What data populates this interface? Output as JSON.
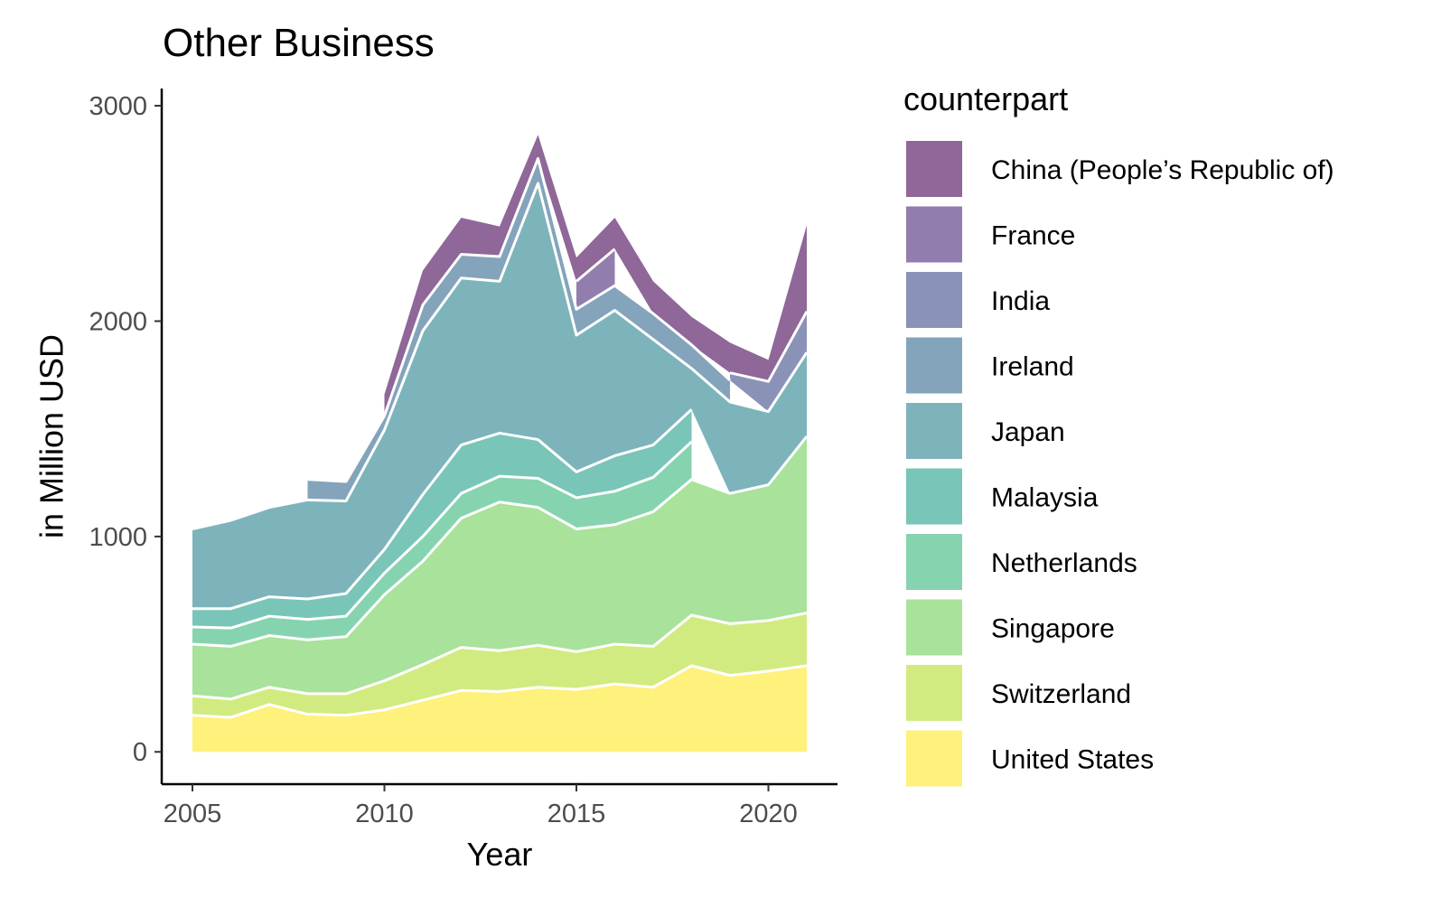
{
  "chart_data": {
    "type": "area",
    "stacked": true,
    "title": "Other Business",
    "xlabel": "Year",
    "ylabel": "in Million USD",
    "xlim": [
      2004.2,
      2021.8
    ],
    "ylim": [
      -150,
      3080
    ],
    "x_ticks": [
      2005,
      2010,
      2015,
      2020
    ],
    "y_ticks": [
      0,
      1000,
      2000,
      3000
    ],
    "grid": false,
    "legend": {
      "title": "counterpart",
      "position": "right"
    },
    "x": [
      2005,
      2006,
      2007,
      2008,
      2009,
      2010,
      2011,
      2012,
      2013,
      2014,
      2015,
      2016,
      2017,
      2018,
      2019,
      2020,
      2021
    ],
    "series": [
      {
        "name": "United States",
        "color": "#FDE725",
        "values": [
          170,
          160,
          220,
          175,
          170,
          195,
          240,
          285,
          280,
          300,
          290,
          315,
          300,
          400,
          355,
          375,
          400
        ]
      },
      {
        "name": "Switzerland",
        "color": "#B4DE2C",
        "values": [
          90,
          85,
          80,
          95,
          100,
          135,
          165,
          200,
          190,
          195,
          175,
          185,
          190,
          235,
          240,
          235,
          245
        ]
      },
      {
        "name": "Singapore",
        "color": "#6ECE58",
        "values": [
          240,
          245,
          240,
          250,
          265,
          400,
          480,
          600,
          690,
          640,
          570,
          555,
          625,
          630,
          605,
          630,
          820
        ]
      },
      {
        "name": "Netherlands",
        "color": "#35B779",
        "values": [
          80,
          85,
          90,
          95,
          95,
          100,
          115,
          115,
          120,
          135,
          145,
          155,
          160,
          175,
          null,
          null,
          null
        ]
      },
      {
        "name": "Malaysia",
        "color": "#1F9E89",
        "values": [
          85,
          90,
          90,
          95,
          105,
          110,
          195,
          225,
          200,
          180,
          120,
          165,
          150,
          150,
          null,
          null,
          null
        ]
      },
      {
        "name": "Japan",
        "color": "#26828E",
        "values": [
          370,
          410,
          415,
          460,
          430,
          555,
          760,
          775,
          705,
          1190,
          635,
          675,
          490,
          190,
          425,
          340,
          390
        ]
      },
      {
        "name": "Ireland",
        "color": "#31688E",
        "values": [
          null,
          null,
          null,
          95,
          90,
          65,
          120,
          110,
          115,
          115,
          120,
          115,
          120,
          110,
          100,
          null,
          null
        ]
      },
      {
        "name": "India",
        "color": "#3E4A89",
        "values": [
          null,
          null,
          null,
          null,
          null,
          null,
          null,
          null,
          null,
          null,
          null,
          null,
          null,
          null,
          35,
          140,
          190
        ]
      },
      {
        "name": "France",
        "color": "#482878",
        "values": [
          null,
          null,
          null,
          null,
          null,
          null,
          null,
          null,
          null,
          null,
          130,
          170,
          null,
          null,
          null,
          null,
          null
        ]
      },
      {
        "name": "China (People’s Republic of)",
        "color": "#440154",
        "values": [
          null,
          null,
          null,
          null,
          null,
          100,
          160,
          170,
          140,
          110,
          110,
          145,
          150,
          130,
          140,
          100,
          400
        ]
      }
    ],
    "legend_order": [
      "China (People’s Republic of)",
      "France",
      "India",
      "Ireland",
      "Japan",
      "Malaysia",
      "Netherlands",
      "Singapore",
      "Switzerland",
      "United States"
    ],
    "fill_opacity": 0.6
  }
}
